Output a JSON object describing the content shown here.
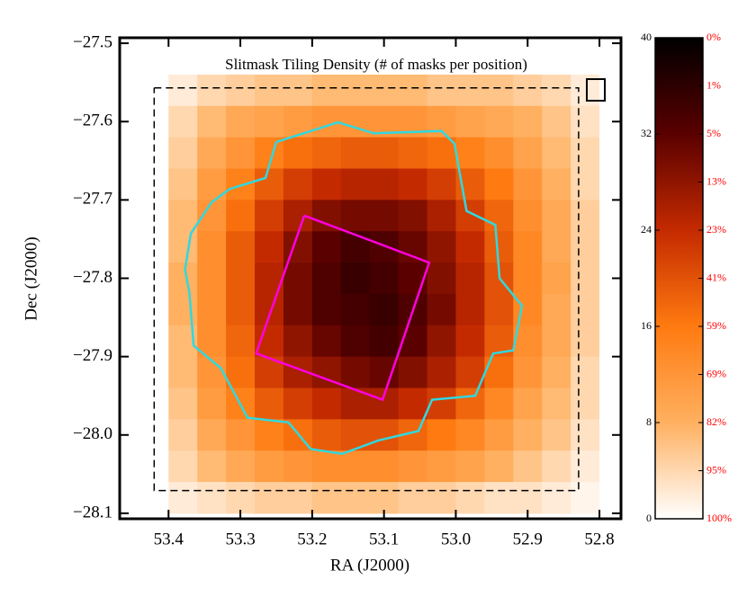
{
  "chart_data": {
    "type": "heatmap",
    "title": "Slitmask Tiling Density (# of masks per position)",
    "xlabel": "RA (J2000)",
    "ylabel": "Dec (J2000)",
    "xlim": [
      53.468,
      52.77
    ],
    "ylim": [
      -28.107,
      -27.493
    ],
    "xticks": [
      {
        "value": 53.4,
        "label": "53.4"
      },
      {
        "value": 53.3,
        "label": "53.3"
      },
      {
        "value": 53.2,
        "label": "53.2"
      },
      {
        "value": 53.1,
        "label": "53.1"
      },
      {
        "value": 53.0,
        "label": "53.0"
      },
      {
        "value": 52.9,
        "label": "52.9"
      },
      {
        "value": 52.8,
        "label": "52.8"
      }
    ],
    "yticks": [
      {
        "value": -27.5,
        "label": "−27.5"
      },
      {
        "value": -27.6,
        "label": "−27.6"
      },
      {
        "value": -27.7,
        "label": "−27.7"
      },
      {
        "value": -27.8,
        "label": "−27.8"
      },
      {
        "value": -27.9,
        "label": "−27.9"
      },
      {
        "value": -28.0,
        "label": "−28.0"
      },
      {
        "value": -28.1,
        "label": "−28.1"
      }
    ],
    "x_edges": [
      53.44,
      53.4,
      53.36,
      53.32,
      53.28,
      53.24,
      53.2,
      53.16,
      53.12,
      53.08,
      53.04,
      53.0,
      52.96,
      52.92,
      52.88,
      52.84,
      52.8,
      52.76
    ],
    "y_edges": [
      -27.54,
      -27.58,
      -27.62,
      -27.66,
      -27.7,
      -27.74,
      -27.78,
      -27.82,
      -27.86,
      -27.9,
      -27.94,
      -27.98,
      -28.02,
      -28.06,
      -28.1
    ],
    "z": [
      [
        0,
        2,
        4,
        5,
        6,
        6,
        7,
        7,
        7,
        7,
        6,
        6,
        6,
        5,
        4,
        2,
        0
      ],
      [
        0,
        4,
        7,
        9,
        10,
        11,
        12,
        12,
        12,
        12,
        11,
        10,
        9,
        8,
        6,
        3,
        0
      ],
      [
        0,
        5,
        9,
        12,
        15,
        17,
        18,
        19,
        19,
        18,
        17,
        15,
        13,
        10,
        7,
        4,
        0
      ],
      [
        0,
        6,
        11,
        15,
        19,
        22,
        24,
        25,
        25,
        24,
        22,
        19,
        16,
        12,
        8,
        4,
        0
      ],
      [
        0,
        7,
        12,
        17,
        22,
        26,
        29,
        30,
        30,
        29,
        26,
        22,
        18,
        13,
        9,
        5,
        0
      ],
      [
        0,
        7,
        13,
        19,
        24,
        29,
        32,
        34,
        33,
        31,
        28,
        24,
        19,
        14,
        9,
        5,
        0
      ],
      [
        0,
        8,
        13,
        19,
        25,
        30,
        33,
        35,
        34,
        32,
        29,
        25,
        20,
        14,
        10,
        5,
        0
      ],
      [
        0,
        8,
        13,
        19,
        25,
        30,
        33,
        34,
        35,
        33,
        30,
        25,
        20,
        14,
        9,
        5,
        0
      ],
      [
        0,
        7,
        13,
        18,
        24,
        28,
        31,
        33,
        34,
        32,
        28,
        24,
        19,
        13,
        9,
        5,
        0
      ],
      [
        0,
        7,
        12,
        17,
        22,
        26,
        28,
        30,
        31,
        29,
        26,
        22,
        17,
        12,
        8,
        4,
        0
      ],
      [
        0,
        6,
        11,
        15,
        19,
        22,
        24,
        26,
        26,
        24,
        22,
        18,
        14,
        10,
        7,
        4,
        0
      ],
      [
        0,
        5,
        9,
        12,
        15,
        17,
        19,
        20,
        20,
        18,
        16,
        14,
        11,
        8,
        6,
        3,
        0
      ],
      [
        0,
        4,
        7,
        9,
        11,
        12,
        13,
        13,
        13,
        12,
        11,
        10,
        8,
        6,
        4,
        2,
        0
      ],
      [
        0,
        2,
        3,
        4,
        5,
        5,
        6,
        6,
        6,
        5,
        5,
        4,
        3,
        3,
        2,
        1,
        0
      ]
    ],
    "colormap": [
      "#ffffff",
      "#ffb060",
      "#ff7a10",
      "#c42a00",
      "#5a0000",
      "#000000"
    ],
    "zlim": [
      0,
      40
    ],
    "colorbar_ticks": [
      0,
      8,
      16,
      24,
      32,
      40
    ],
    "colorbar_percent_ticks": [
      {
        "value": 40,
        "label": "0%"
      },
      {
        "value": 36,
        "label": "1%"
      },
      {
        "value": 32,
        "label": "5%"
      },
      {
        "value": 28,
        "label": "13%"
      },
      {
        "value": 24,
        "label": "23%"
      },
      {
        "value": 20,
        "label": "41%"
      },
      {
        "value": 16,
        "label": "59%"
      },
      {
        "value": 12,
        "label": "69%"
      },
      {
        "value": 8,
        "label": "82%"
      },
      {
        "value": 4,
        "label": "95%"
      },
      {
        "value": 0,
        "label": "100%"
      }
    ],
    "percent_color": "#ff0000",
    "regions": [
      {
        "color": "#30d8e0",
        "dash": false,
        "ra": [
          53.25,
          53.164,
          53.114,
          53.02,
          53.002,
          52.985,
          52.945,
          52.939,
          52.908,
          52.92,
          52.948,
          52.973,
          53.033,
          53.052,
          53.108,
          53.158,
          53.202,
          53.233,
          53.29,
          53.327,
          53.365,
          53.371,
          53.377,
          53.369,
          53.34,
          53.315,
          53.265,
          53.25
        ],
        "dec": [
          -27.626,
          -27.601,
          -27.615,
          -27.612,
          -27.628,
          -27.714,
          -27.732,
          -27.8,
          -27.835,
          -27.892,
          -27.896,
          -27.95,
          -27.955,
          -27.995,
          -28.007,
          -28.024,
          -28.018,
          -27.984,
          -27.978,
          -27.915,
          -27.886,
          -27.818,
          -27.789,
          -27.743,
          -27.703,
          -27.686,
          -27.672,
          -27.626
        ]
      },
      {
        "color": "#ff00e0",
        "dash": false,
        "ra": [
          53.211,
          53.037,
          53.102,
          53.278,
          53.211
        ],
        "dec": [
          -27.72,
          -27.78,
          -27.955,
          -27.896,
          -27.72
        ]
      },
      {
        "color": "#000000",
        "dash": true,
        "ra": [
          53.42,
          52.829,
          52.829,
          53.42,
          53.42
        ],
        "dec": [
          -27.557,
          -27.557,
          -28.071,
          -28.071,
          -27.557
        ]
      }
    ]
  }
}
